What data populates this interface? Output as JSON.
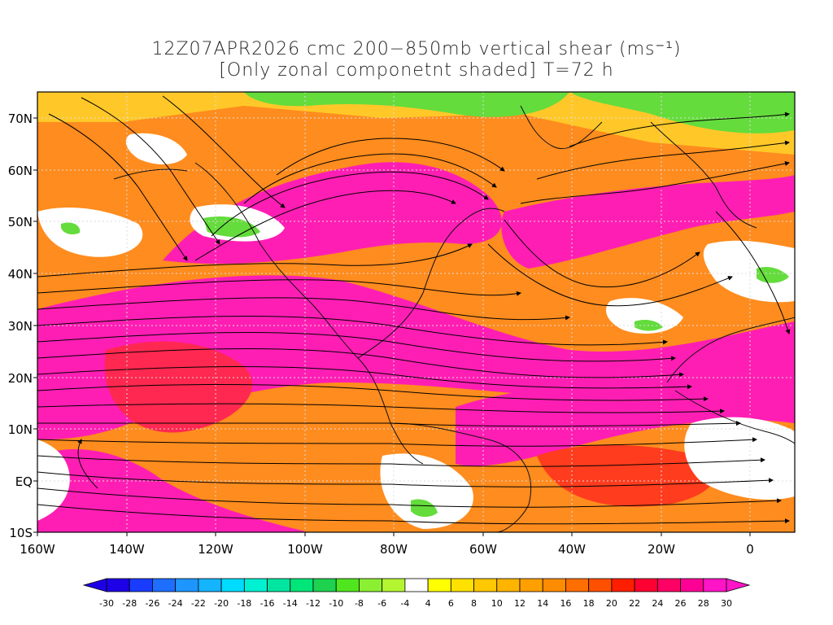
{
  "title": {
    "line1": "12Z07APR2026 cmc 200−850mb vertical shear (ms⁻¹)",
    "line2": "[Only zonal componetnt shaded] T=72 h"
  },
  "axes": {
    "lat_labels": [
      "70N",
      "60N",
      "50N",
      "40N",
      "30N",
      "20N",
      "10N",
      "EQ",
      "10S"
    ],
    "lon_labels": [
      "160W",
      "140W",
      "120W",
      "100W",
      "80W",
      "60W",
      "40W",
      "20W",
      "0"
    ]
  },
  "colorbar": {
    "labels": [
      "-30",
      "-28",
      "-26",
      "-24",
      "-22",
      "-20",
      "-18",
      "-16",
      "-14",
      "-12",
      "-10",
      "-8",
      "-6",
      "-4",
      "4",
      "6",
      "8",
      "10",
      "12",
      "14",
      "16",
      "18",
      "20",
      "22",
      "24",
      "26",
      "28",
      "30"
    ],
    "colors": [
      "#1e00e6",
      "#1a3cff",
      "#1e6eff",
      "#1e96ff",
      "#14b4ff",
      "#00dcff",
      "#00f0d2",
      "#00e6a0",
      "#00e678",
      "#1ed250",
      "#50e61e",
      "#8cf032",
      "#b4f532",
      "#ffffff",
      "#ffff00",
      "#ffe100",
      "#ffc800",
      "#ffb400",
      "#ffa000",
      "#ff8c00",
      "#ff6e00",
      "#ff5000",
      "#ff1e00",
      "#ff0032",
      "#ff0064",
      "#ff0096",
      "#ff14c8"
    ]
  },
  "map": {
    "region": "North Atlantic / North America",
    "lat_range": [
      -10,
      75
    ],
    "lon_range": [
      -160,
      10
    ]
  }
}
